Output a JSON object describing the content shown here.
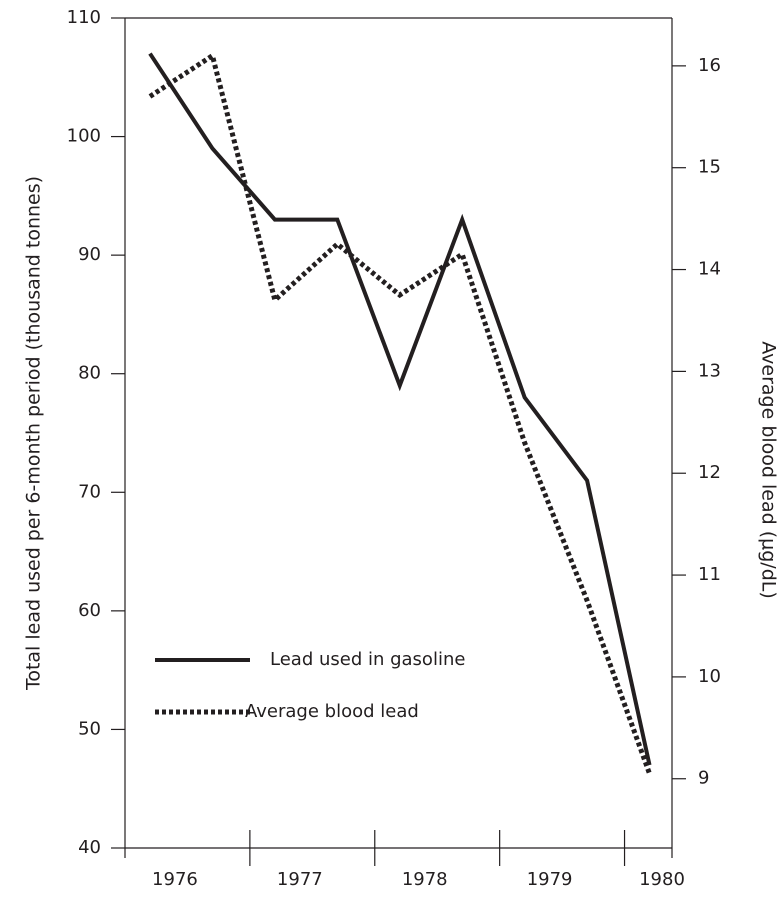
{
  "chart_data": {
    "type": "line",
    "x": [
      1976.2,
      1976.7,
      1977.2,
      1977.7,
      1978.2,
      1978.7,
      1979.2,
      1979.7,
      1980.2
    ],
    "series": [
      {
        "name": "Lead used in gasoline",
        "color": "#231f20",
        "dash": "solid",
        "axis": "y",
        "values": [
          107,
          99,
          93,
          93,
          79,
          93,
          78,
          71,
          47
        ]
      },
      {
        "name": "Average blood lead",
        "color": "#231f20",
        "dash": "dotted",
        "axis": "y2",
        "values": [
          15.7,
          16.1,
          13.7,
          14.25,
          13.75,
          14.15,
          12.3,
          10.75,
          9.05
        ]
      }
    ],
    "xlim": [
      1976,
      1980.38
    ],
    "xticks": [
      {
        "value": 1976.4,
        "label": "1976"
      },
      {
        "value": 1977.4,
        "label": "1977"
      },
      {
        "value": 1978.4,
        "label": "1978"
      },
      {
        "value": 1979.4,
        "label": "1979"
      },
      {
        "value": 1980.3,
        "label": "1980"
      }
    ],
    "ylim": [
      40,
      110
    ],
    "yticks": [
      40,
      50,
      60,
      70,
      80,
      90,
      100,
      110
    ],
    "y2lim": [
      8.32,
      16.47
    ],
    "y2ticks": [
      9,
      10,
      11,
      12,
      13,
      14,
      15,
      16
    ],
    "ylabel": "Total lead used per 6-month period (thousand tonnes)",
    "y2label": "Average blood lead (µg/dL)",
    "legend": "lower left",
    "grid": false
  }
}
